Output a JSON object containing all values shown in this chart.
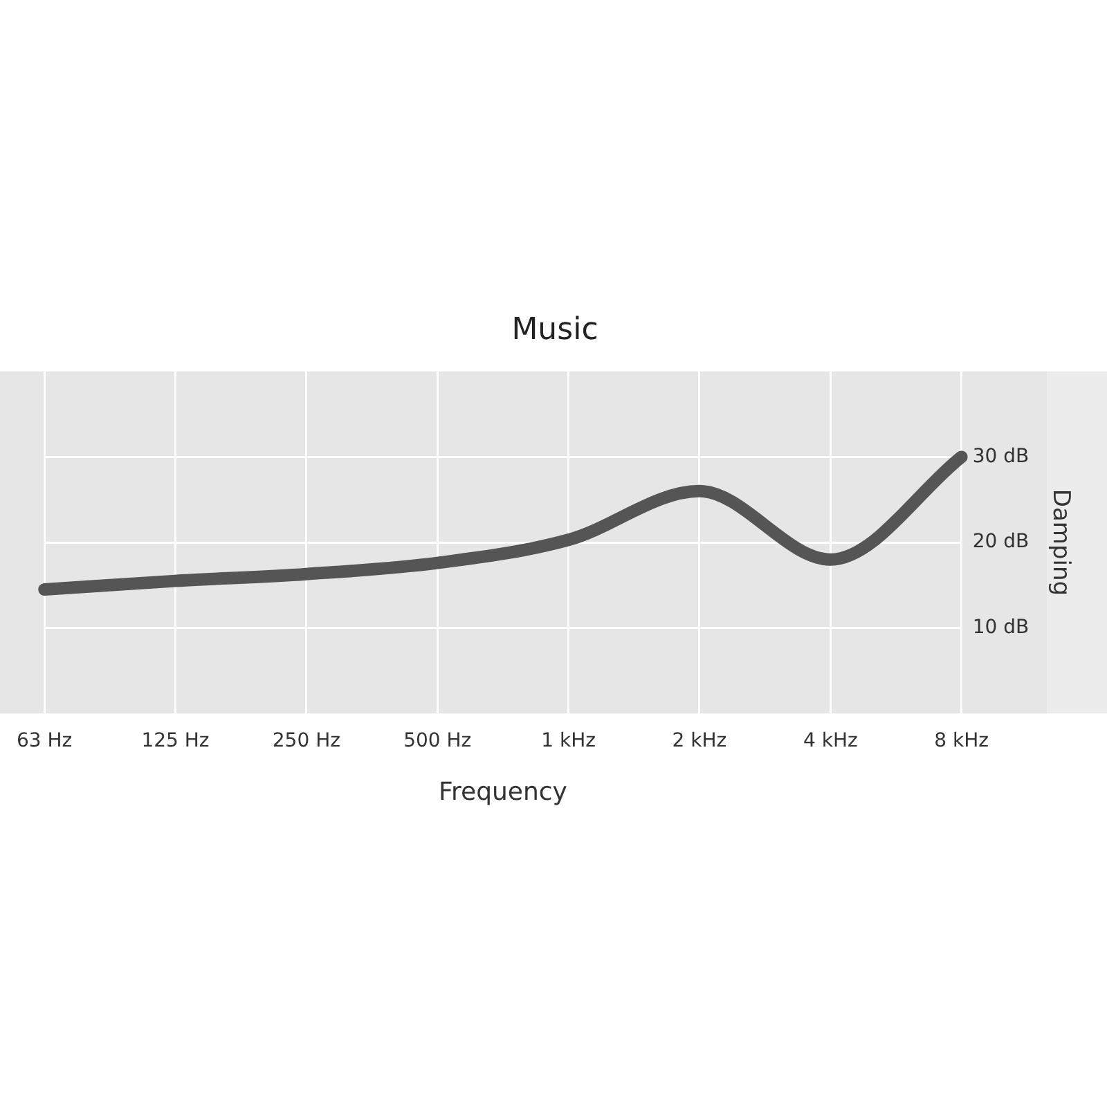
{
  "chart_data": {
    "type": "line",
    "title": "Music",
    "xlabel": "Frequency",
    "ylabel": "Damping",
    "categories": [
      "63 Hz",
      "125 Hz",
      "250 Hz",
      "500 Hz",
      "1 kHz",
      "2 kHz",
      "4 kHz",
      "8 kHz"
    ],
    "series": [
      {
        "color": "#555555",
        "values": [
          14.5,
          15.5,
          16.3,
          17.6,
          20.3,
          26,
          18,
          30
        ]
      }
    ],
    "ylim": [
      0,
      40
    ],
    "yticks": [
      {
        "value": 10,
        "label": "10 dB"
      },
      {
        "value": 20,
        "label": "20 dB"
      },
      {
        "value": 30,
        "label": "30 dB"
      }
    ],
    "grid": true,
    "legend": false,
    "marker": "none"
  }
}
